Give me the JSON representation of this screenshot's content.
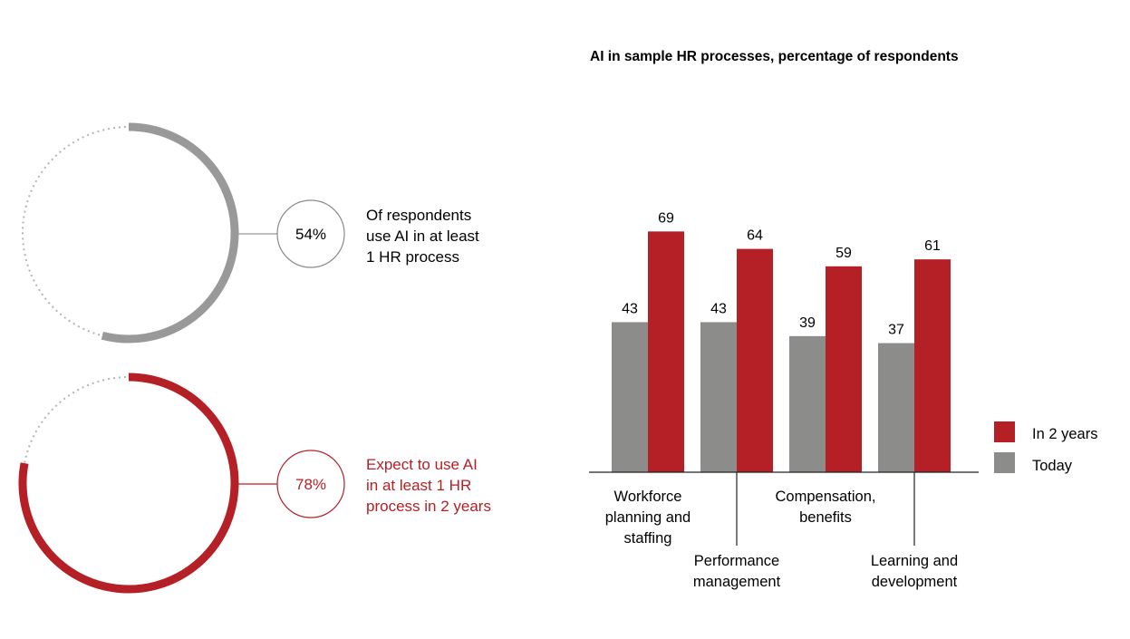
{
  "donuts": [
    {
      "percent_label": "54%",
      "value": 54,
      "color": "#999999",
      "lines": [
        "Of respondents",
        "use AI in at least",
        "1 HR process"
      ],
      "text_color": "#1a1a1a"
    },
    {
      "percent_label": "78%",
      "value": 78,
      "color": "#b52026",
      "lines": [
        "Expect to use AI",
        "in at least 1 HR",
        "process in 2 years"
      ],
      "text_color": "#b52026"
    }
  ],
  "chart_data": {
    "type": "bar",
    "title": "AI in sample HR processes, percentage of respondents",
    "categories": [
      [
        "Workforce",
        "planning and",
        "staffing"
      ],
      [
        "Performance",
        "management"
      ],
      [
        "Compensation,",
        "benefits"
      ],
      [
        "Learning and",
        "development"
      ]
    ],
    "series": [
      {
        "name": "Today",
        "values": [
          43,
          43,
          39,
          37
        ],
        "color": "#8c8c8a"
      },
      {
        "name": "In 2 years",
        "values": [
          69,
          64,
          59,
          61
        ],
        "color": "#b52026"
      }
    ],
    "legend_position": "right",
    "grid": false,
    "ylim": [
      0,
      100
    ]
  }
}
